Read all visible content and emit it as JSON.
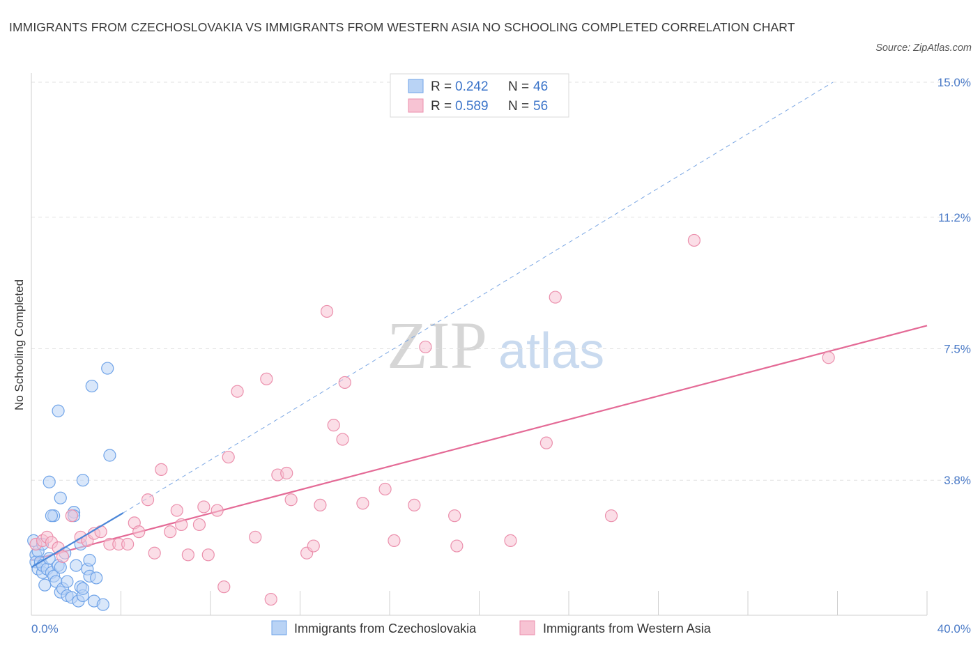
{
  "title": "IMMIGRANTS FROM CZECHOSLOVAKIA VS IMMIGRANTS FROM WESTERN ASIA NO SCHOOLING COMPLETED CORRELATION CHART",
  "source": "Source: ZipAtlas.com",
  "watermark": {
    "zip": "ZIP",
    "atlas": "atlas"
  },
  "legend": [
    {
      "r_label": "R =",
      "r_value": "0.242",
      "n_label": "N =",
      "n_value": "46",
      "color": "#6fa3e8",
      "fill": "#b9d3f5"
    },
    {
      "r_label": "R =",
      "r_value": "0.589",
      "n_label": "N =",
      "n_value": "56",
      "color": "#eb8fac",
      "fill": "#f7c3d3"
    }
  ],
  "chart_data": {
    "type": "scatter",
    "xlabel": "",
    "ylabel": "No Schooling Completed",
    "xlim": [
      0,
      40
    ],
    "ylim": [
      0,
      15
    ],
    "x_tick_labels": [
      "0.0%",
      "40.0%"
    ],
    "y_ticks": [
      3.8,
      7.5,
      11.2,
      15.0
    ],
    "y_tick_labels": [
      "3.8%",
      "7.5%",
      "11.2%",
      "15.0%"
    ],
    "series": [
      {
        "name": "Immigrants from Czechoslovakia",
        "color": "#4a86d8",
        "fill": "#b9d3f5",
        "trend": {
          "x": [
            0,
            4.1
          ],
          "y": [
            1.35,
            2.88
          ],
          "dashed_to": [
            35.8,
            15.0
          ]
        },
        "points": [
          [
            0.1,
            2.1
          ],
          [
            0.2,
            1.7
          ],
          [
            0.2,
            1.5
          ],
          [
            0.3,
            1.8
          ],
          [
            0.3,
            1.3
          ],
          [
            0.4,
            1.5
          ],
          [
            0.5,
            1.2
          ],
          [
            0.5,
            1.4
          ],
          [
            0.6,
            0.85
          ],
          [
            0.7,
            1.3
          ],
          [
            0.8,
            1.6
          ],
          [
            0.9,
            1.2
          ],
          [
            1.0,
            1.1
          ],
          [
            1.0,
            2.8
          ],
          [
            1.1,
            0.95
          ],
          [
            1.2,
            1.4
          ],
          [
            1.3,
            3.3
          ],
          [
            1.3,
            0.65
          ],
          [
            1.4,
            0.75
          ],
          [
            1.5,
            1.75
          ],
          [
            1.6,
            0.55
          ],
          [
            1.6,
            0.95
          ],
          [
            1.8,
            0.5
          ],
          [
            1.9,
            2.9
          ],
          [
            1.9,
            2.8
          ],
          [
            2.0,
            1.4
          ],
          [
            2.1,
            0.4
          ],
          [
            2.2,
            2.0
          ],
          [
            2.2,
            0.8
          ],
          [
            2.3,
            0.55
          ],
          [
            2.3,
            0.75
          ],
          [
            2.5,
            1.3
          ],
          [
            2.6,
            1.1
          ],
          [
            2.6,
            1.55
          ],
          [
            2.8,
            0.4
          ],
          [
            2.9,
            1.05
          ],
          [
            3.2,
            0.3
          ],
          [
            3.4,
            6.95
          ],
          [
            3.5,
            4.5
          ],
          [
            2.7,
            6.45
          ],
          [
            1.2,
            5.75
          ],
          [
            0.8,
            3.75
          ],
          [
            2.3,
            3.8
          ],
          [
            0.9,
            2.8
          ],
          [
            1.3,
            1.35
          ],
          [
            0.5,
            2.0
          ]
        ]
      },
      {
        "name": "Immigrants from Western Asia",
        "color": "#e46a96",
        "fill": "#f7c3d3",
        "trend": {
          "x": [
            0,
            40
          ],
          "y": [
            1.55,
            8.15
          ]
        },
        "points": [
          [
            0.2,
            2.0
          ],
          [
            0.5,
            2.1
          ],
          [
            0.7,
            2.2
          ],
          [
            0.9,
            2.05
          ],
          [
            1.2,
            1.9
          ],
          [
            1.4,
            1.65
          ],
          [
            1.8,
            2.8
          ],
          [
            2.2,
            2.2
          ],
          [
            2.5,
            2.1
          ],
          [
            2.8,
            2.3
          ],
          [
            3.1,
            2.35
          ],
          [
            3.5,
            2.0
          ],
          [
            3.9,
            2.0
          ],
          [
            4.3,
            2.0
          ],
          [
            4.6,
            2.6
          ],
          [
            4.8,
            2.35
          ],
          [
            5.2,
            3.25
          ],
          [
            5.5,
            1.75
          ],
          [
            5.8,
            4.1
          ],
          [
            6.2,
            2.35
          ],
          [
            6.5,
            2.95
          ],
          [
            6.7,
            2.55
          ],
          [
            7.0,
            1.7
          ],
          [
            7.5,
            2.55
          ],
          [
            7.7,
            3.05
          ],
          [
            7.9,
            1.7
          ],
          [
            8.3,
            2.95
          ],
          [
            8.6,
            0.8
          ],
          [
            8.8,
            4.45
          ],
          [
            9.2,
            6.3
          ],
          [
            10.0,
            2.2
          ],
          [
            10.5,
            6.65
          ],
          [
            10.7,
            0.45
          ],
          [
            11.0,
            3.95
          ],
          [
            11.4,
            4.0
          ],
          [
            11.6,
            3.25
          ],
          [
            12.3,
            1.75
          ],
          [
            12.6,
            1.95
          ],
          [
            12.9,
            3.1
          ],
          [
            13.2,
            8.55
          ],
          [
            13.5,
            5.35
          ],
          [
            13.9,
            4.95
          ],
          [
            14.0,
            6.55
          ],
          [
            14.8,
            3.15
          ],
          [
            15.8,
            3.55
          ],
          [
            16.2,
            2.1
          ],
          [
            17.1,
            3.1
          ],
          [
            17.6,
            7.55
          ],
          [
            18.9,
            2.8
          ],
          [
            19.0,
            1.95
          ],
          [
            21.4,
            2.1
          ],
          [
            23.0,
            4.85
          ],
          [
            23.4,
            8.95
          ],
          [
            25.9,
            2.8
          ],
          [
            29.6,
            10.55
          ],
          [
            35.6,
            7.25
          ]
        ]
      }
    ]
  }
}
